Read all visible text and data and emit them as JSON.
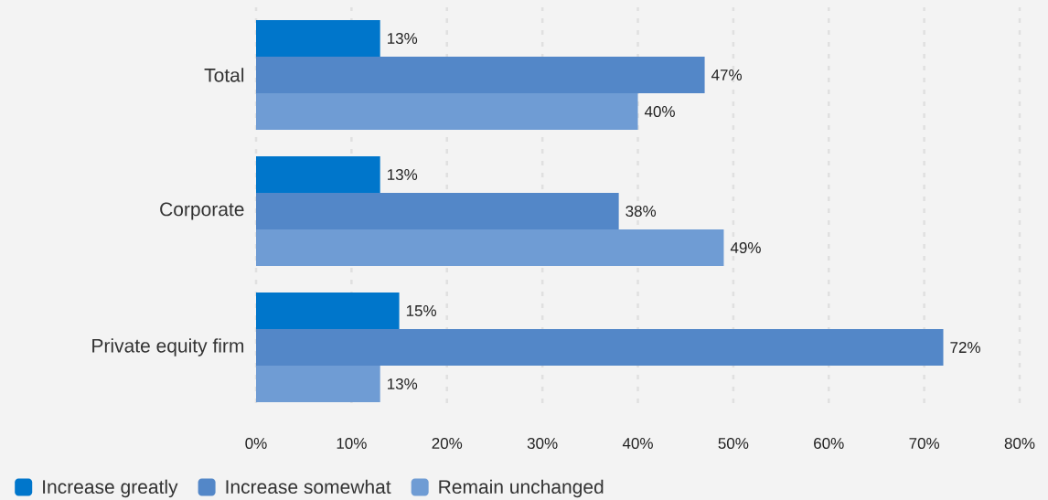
{
  "chart_data": {
    "type": "bar",
    "orientation": "horizontal",
    "categories": [
      "Total",
      "Corporate",
      "Private equity firm"
    ],
    "series": [
      {
        "name": "Increase greatly",
        "color": "#0076cb",
        "values": [
          13,
          13,
          15
        ],
        "value_labels": [
          "13%",
          "13%",
          "15%"
        ]
      },
      {
        "name": "Increase somewhat",
        "color": "#5387c8",
        "values": [
          47,
          38,
          72
        ],
        "value_labels": [
          "47%",
          "38%",
          "72%"
        ]
      },
      {
        "name": "Remain unchanged",
        "color": "#6f9cd4",
        "values": [
          40,
          49,
          13
        ],
        "value_labels": [
          "40%",
          "49%",
          "13%"
        ]
      }
    ],
    "xlim": [
      0,
      80
    ],
    "xticks": [
      {
        "value": 0,
        "label": "0%"
      },
      {
        "value": 10,
        "label": "10%"
      },
      {
        "value": 20,
        "label": "20%"
      },
      {
        "value": 30,
        "label": "30%"
      },
      {
        "value": 40,
        "label": "40%"
      },
      {
        "value": 50,
        "label": "50%"
      },
      {
        "value": 60,
        "label": "60%"
      },
      {
        "value": 70,
        "label": "70%"
      },
      {
        "value": 80,
        "label": "80%"
      }
    ],
    "grid": "x",
    "legend": "bottom left"
  }
}
